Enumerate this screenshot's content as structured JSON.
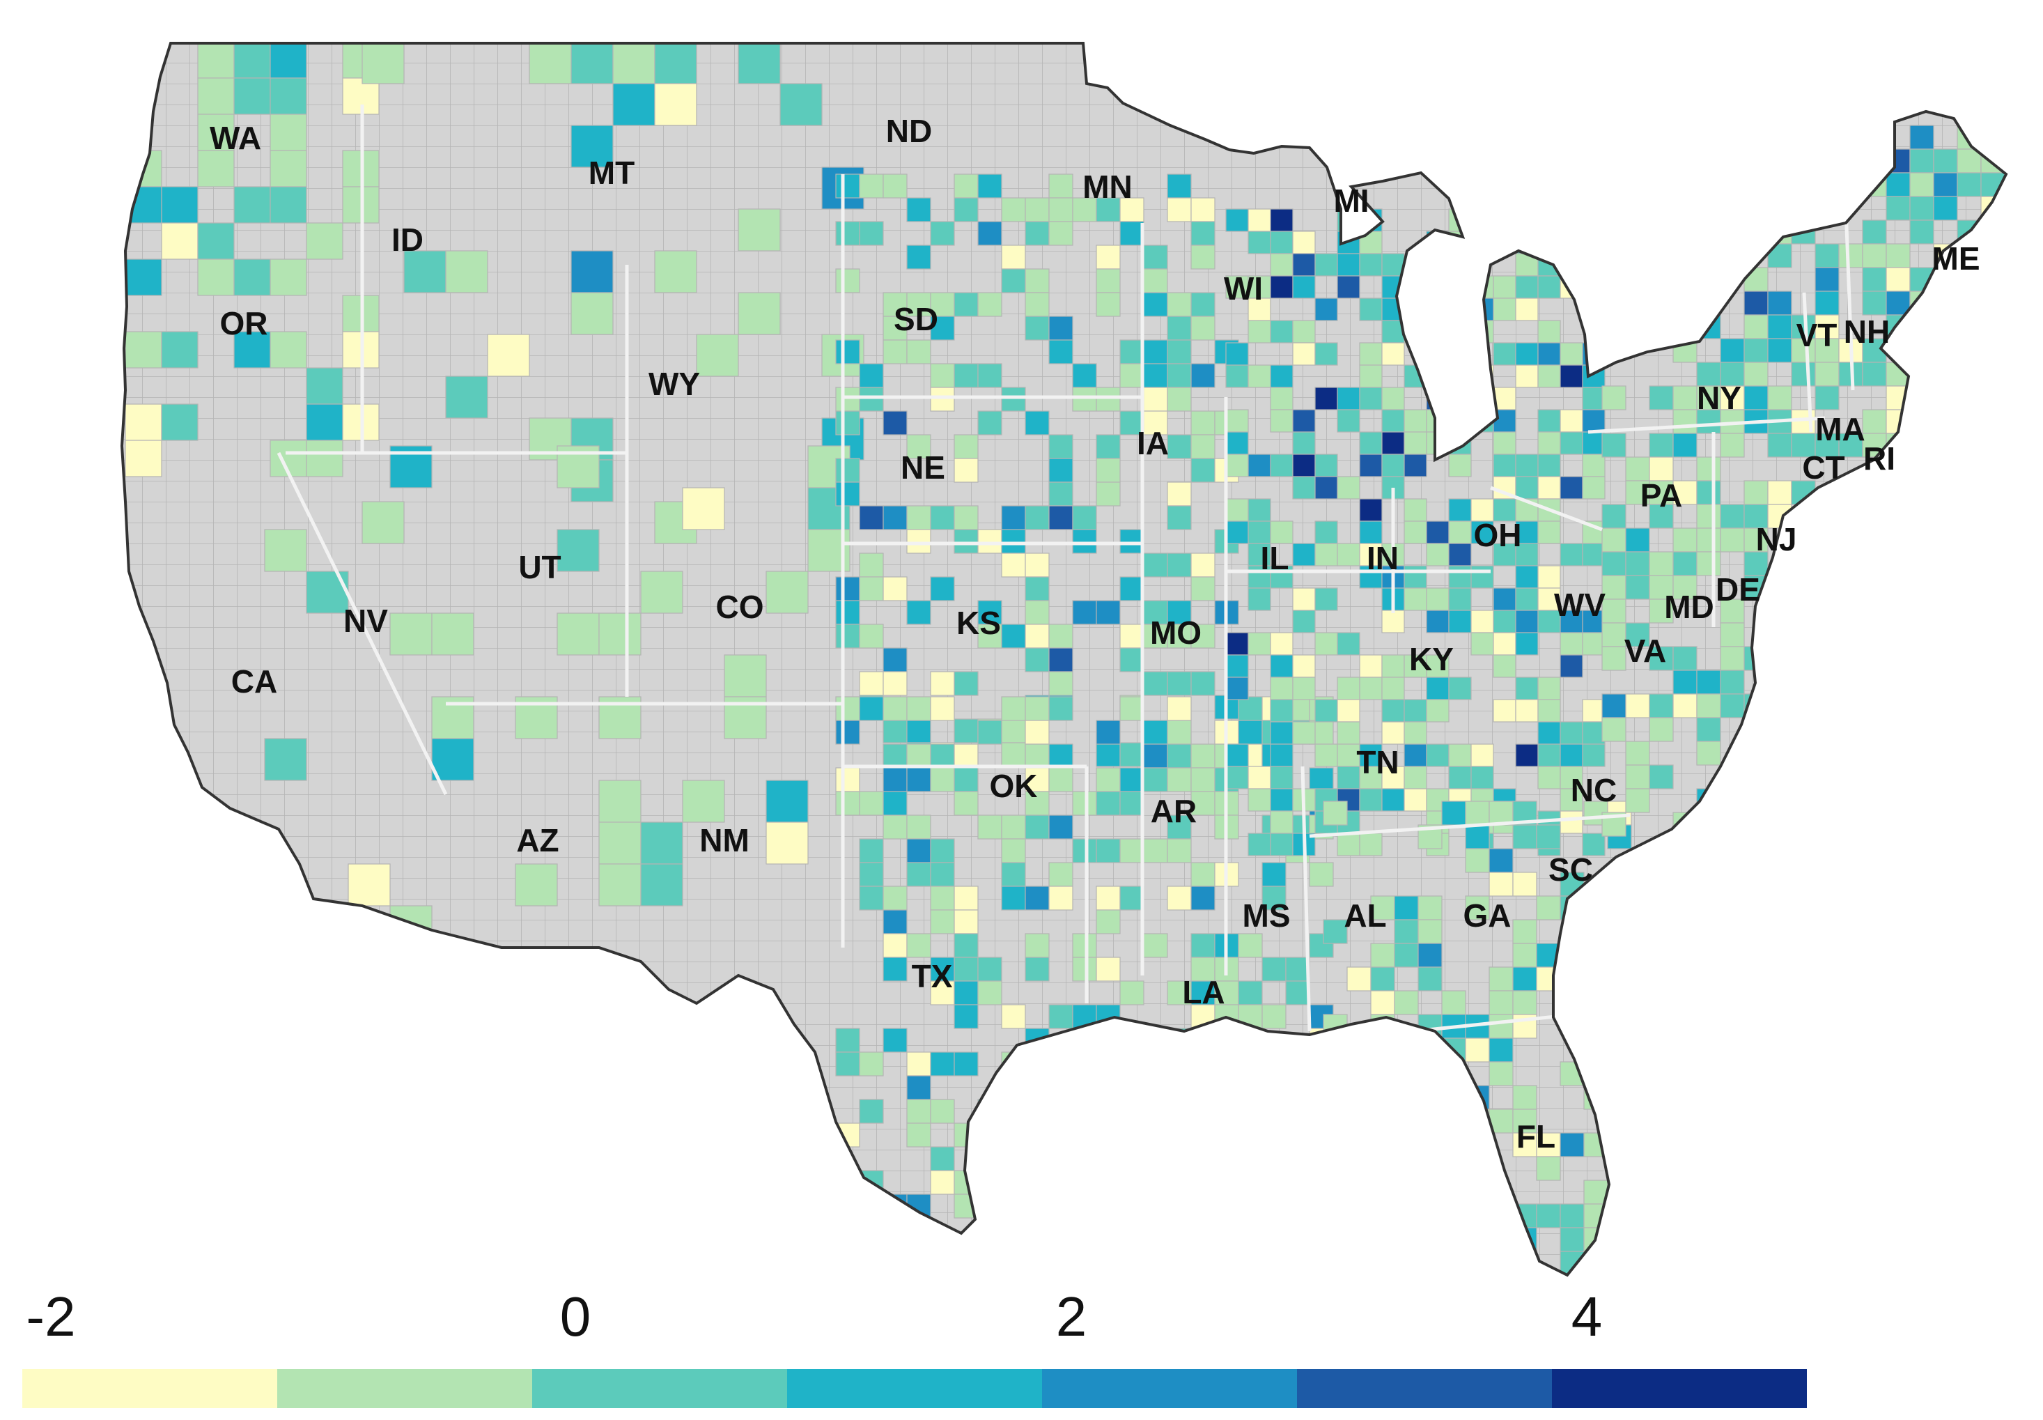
{
  "map": {
    "state_labels": [
      "WA",
      "OR",
      "CA",
      "ID",
      "NV",
      "MT",
      "WY",
      "UT",
      "AZ",
      "CO",
      "NM",
      "ND",
      "SD",
      "NE",
      "KS",
      "OK",
      "TX",
      "MN",
      "IA",
      "MO",
      "AR",
      "LA",
      "WI",
      "IL",
      "MS",
      "MI",
      "IN",
      "KY",
      "TN",
      "AL",
      "OH",
      "GA",
      "FL",
      "SC",
      "NC",
      "WV",
      "VA",
      "PA",
      "NY",
      "NJ",
      "DE",
      "MD",
      "VT",
      "NH",
      "ME",
      "MA",
      "CT",
      "RI"
    ],
    "colors": {
      "no_data": "#d4d4d4",
      "land_border": "#a8a8a8",
      "coast": "#333333"
    }
  },
  "legend": {
    "tick_labels": [
      "-2",
      "0",
      "2",
      "4"
    ],
    "tick_values": [
      -2,
      0,
      2,
      4
    ],
    "bins": [
      {
        "color": "#fefcc4"
      },
      {
        "color": "#b3e4b2"
      },
      {
        "color": "#5ccbbb"
      },
      {
        "color": "#1fb3c8"
      },
      {
        "color": "#1e8ec4"
      },
      {
        "color": "#1d5aa6"
      },
      {
        "color": "#0c2c84"
      }
    ]
  }
}
